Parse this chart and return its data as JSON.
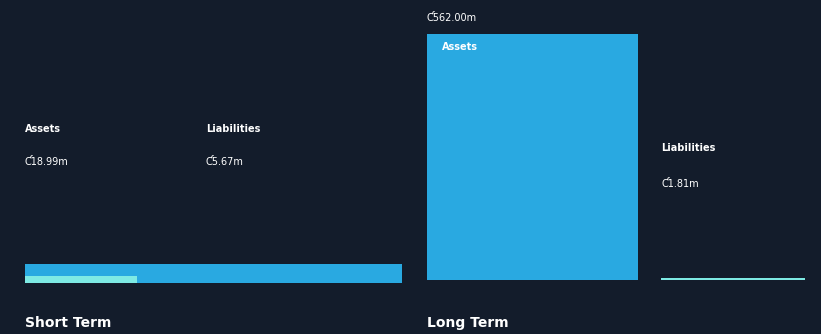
{
  "background_color": "#131c2b",
  "text_color": "#ffffff",
  "short_term": {
    "label": "Short Term",
    "assets_value": 18.99,
    "assets_color": "#29a9e1",
    "assets_label": "Assets",
    "assets_display": "Ƈ18.99m",
    "liab_value": 5.67,
    "liab_color": "#7eeae4",
    "liab_label": "Liabilities",
    "liab_display": "Ƈ5.67m"
  },
  "long_term": {
    "label": "Long Term",
    "assets_value": 562.0,
    "assets_color": "#29a9e1",
    "assets_label": "Assets",
    "assets_display": "Ƈ562.00m",
    "liab_value": 1.81,
    "liab_color": "#7eeae4",
    "liab_label": "Liabilities",
    "liab_display": "Ƈ1.81m"
  }
}
